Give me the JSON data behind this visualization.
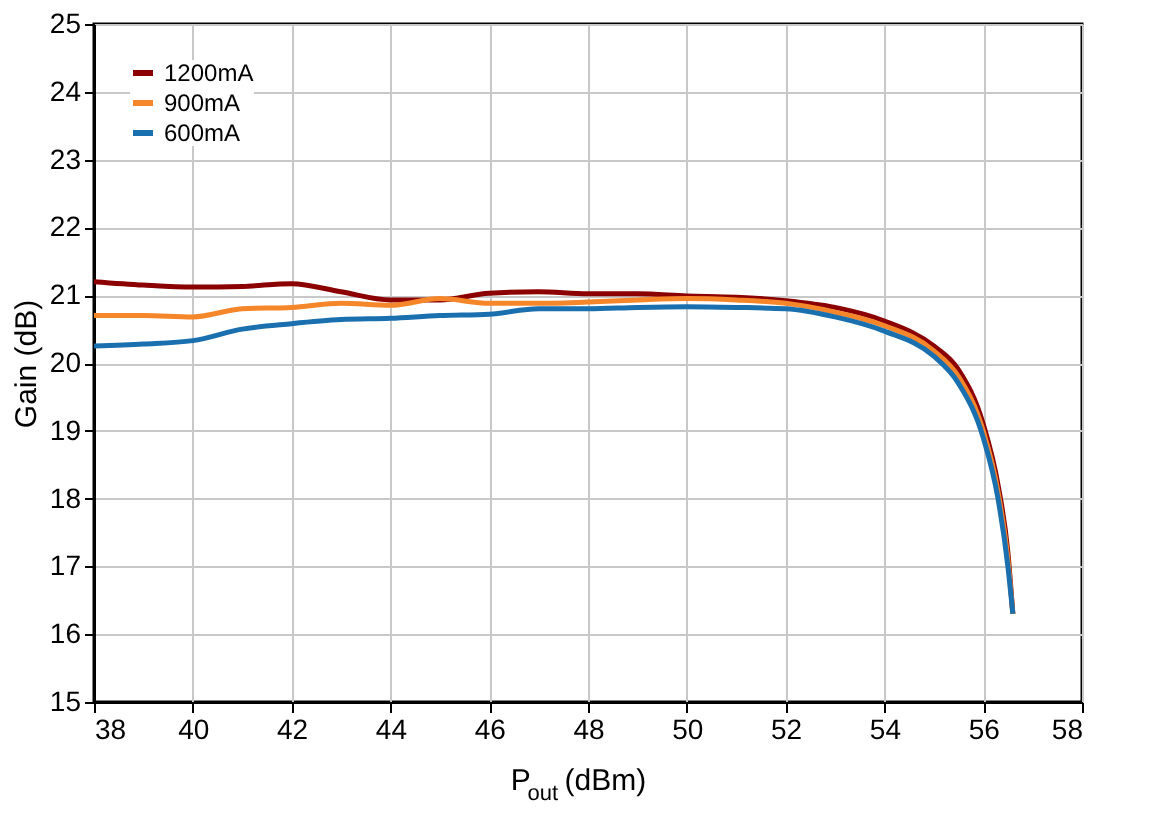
{
  "chart_data": {
    "type": "line",
    "xlabel": "P$_{out}$ (dBm)",
    "ylabel": "Gain (dB)",
    "xlim": [
      38,
      58
    ],
    "xticks": [
      38,
      40,
      42,
      44,
      46,
      48,
      50,
      52,
      54,
      56,
      58
    ],
    "ylim": [
      15,
      25
    ],
    "yticks": [
      15,
      16,
      17,
      18,
      19,
      20,
      21,
      22,
      23,
      24,
      25
    ],
    "grid": true,
    "legend": "top left",
    "marker": "none",
    "line_style": "solid",
    "x": [
      38,
      39,
      40,
      41,
      42,
      43,
      44,
      45,
      46,
      47,
      48,
      49,
      50,
      51,
      52,
      53,
      54,
      55,
      55.5,
      56,
      56.3,
      56.5,
      56.6
    ],
    "series": [
      {
        "name": "1200mA",
        "color": "#8b0000",
        "values": [
          21.2,
          21.15,
          21.12,
          21.13,
          21.17,
          21.05,
          20.93,
          20.93,
          21.03,
          21.05,
          21.02,
          21.02,
          20.99,
          20.97,
          20.92,
          20.82,
          20.62,
          20.25,
          19.9,
          19.1,
          18.2,
          17.2,
          16.3
        ]
      },
      {
        "name": "900mA",
        "color": "#f5862a",
        "values": [
          20.7,
          20.7,
          20.68,
          20.8,
          20.82,
          20.88,
          20.85,
          20.95,
          20.88,
          20.88,
          20.9,
          20.93,
          20.95,
          20.93,
          20.88,
          20.75,
          20.55,
          20.18,
          19.8,
          19.0,
          18.1,
          17.1,
          16.3
        ]
      },
      {
        "name": "600mA",
        "color": "#1a6faf",
        "values": [
          20.25,
          20.28,
          20.33,
          20.5,
          20.58,
          20.64,
          20.66,
          20.7,
          20.72,
          20.8,
          20.8,
          20.82,
          20.83,
          20.82,
          20.8,
          20.68,
          20.47,
          20.1,
          19.7,
          18.9,
          18.0,
          17.0,
          16.3
        ]
      }
    ]
  }
}
